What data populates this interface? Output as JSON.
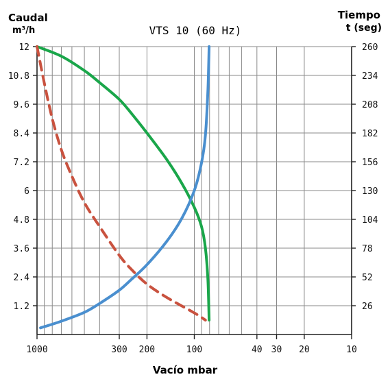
{
  "chart_data": {
    "type": "line",
    "title": "VTS 10 (60 Hz)",
    "xlabel": "Vacío mbar",
    "ylabel_left_line1": "Caudal",
    "ylabel_left_line2": "m³/h",
    "ylabel_right_line1": "Tiempo",
    "ylabel_right_line2": "t (seg)",
    "x_scale": "log-reversed",
    "xlim": [
      1000,
      10
    ],
    "x_ticks": [
      {
        "value": 1000,
        "label": "1000"
      },
      {
        "value": 300,
        "label": "300"
      },
      {
        "value": 200,
        "label": "200"
      },
      {
        "value": 100,
        "label": "100"
      },
      {
        "value": 40,
        "label": "40"
      },
      {
        "value": 30,
        "label": "30"
      },
      {
        "value": 20,
        "label": "20"
      },
      {
        "value": 10,
        "label": "10"
      }
    ],
    "ylim_left": [
      0,
      12
    ],
    "y_ticks_left": [
      "1.2",
      "2.4",
      "3.6",
      "4.8",
      "6",
      "7.2",
      "8.4",
      "9.6",
      "10.8",
      "12"
    ],
    "y_ticks_left_values": [
      1.2,
      2.4,
      3.6,
      4.8,
      6,
      7.2,
      8.4,
      9.6,
      10.8,
      12
    ],
    "ylim_right": [
      0,
      260
    ],
    "y_ticks_right": [
      "26",
      "52",
      "78",
      "104",
      "130",
      "156",
      "182",
      "208",
      "234",
      "260"
    ],
    "y_ticks_right_values": [
      26,
      52,
      78,
      104,
      130,
      156,
      182,
      208,
      234,
      260
    ],
    "grid": true,
    "series": [
      {
        "color": "#1aa64a",
        "style": "solid",
        "axis": "left",
        "x": [
          1000,
          700,
          500,
          400,
          300,
          250,
          200,
          150,
          120,
          100,
          90,
          85,
          82,
          80.5
        ],
        "y": [
          12,
          11.6,
          11.0,
          10.5,
          9.8,
          9.2,
          8.4,
          7.3,
          6.3,
          5.3,
          4.5,
          3.6,
          2.3,
          0.6
        ]
      },
      {
        "color": "#4a8fcf",
        "style": "solid",
        "axis": "right",
        "x": [
          950,
          700,
          500,
          400,
          300,
          250,
          200,
          150,
          120,
          100,
          90,
          85,
          82,
          80.5
        ],
        "y": [
          6,
          12,
          20,
          28,
          40,
          50,
          63,
          84,
          105,
          130,
          155,
          180,
          220,
          260
        ]
      },
      {
        "color": "#c9523f",
        "style": "dashed",
        "axis": "left",
        "x": [
          1000,
          900,
          800,
          700,
          600,
          500,
          400,
          300,
          250,
          200,
          150,
          100,
          85
        ],
        "y": [
          12,
          10.5,
          9.0,
          7.7,
          6.6,
          5.5,
          4.5,
          3.3,
          2.7,
          2.1,
          1.55,
          0.9,
          0.6
        ]
      }
    ]
  }
}
